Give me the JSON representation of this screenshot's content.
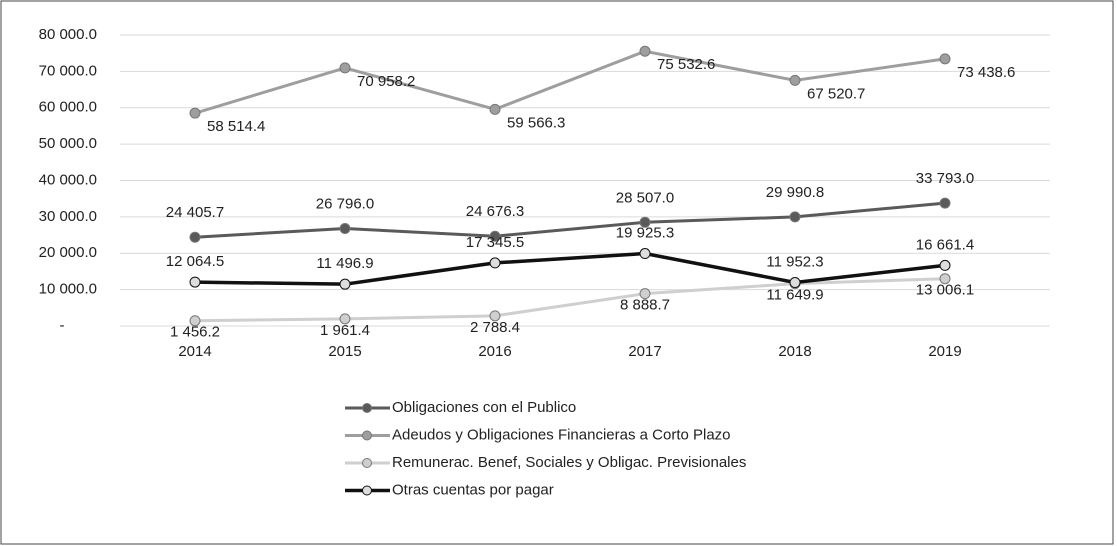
{
  "chart_data": {
    "type": "line",
    "categories": [
      "2014",
      "2015",
      "2016",
      "2017",
      "2018",
      "2019"
    ],
    "ylim": [
      0,
      80000
    ],
    "yticks": [
      {
        "value": 0,
        "label": "-"
      },
      {
        "value": 10000,
        "label": "10 000.0"
      },
      {
        "value": 20000,
        "label": "20 000.0"
      },
      {
        "value": 30000,
        "label": "30 000.0"
      },
      {
        "value": 40000,
        "label": "40 000.0"
      },
      {
        "value": 50000,
        "label": "50 000.0"
      },
      {
        "value": 60000,
        "label": "60 000.0"
      },
      {
        "value": 70000,
        "label": "70 000.0"
      },
      {
        "value": 80000,
        "label": "80 000.0"
      }
    ],
    "grid": true,
    "legend": "bottom",
    "series": [
      {
        "name": "Obligaciones con el Publico",
        "color": "#5a5a5a",
        "values": [
          24405.7,
          26796.0,
          24676.3,
          28507.0,
          29990.8,
          33793.0
        ],
        "value_labels": [
          "24 405.7",
          "26 796.0",
          "24 676.3",
          "28 507.0",
          "29 990.8",
          "33 793.0"
        ]
      },
      {
        "name": "Adeudos y Obligaciones Financieras a Corto Plazo",
        "color": "#9e9e9e",
        "values": [
          58514.4,
          70958.2,
          59566.3,
          75532.6,
          67520.7,
          73438.6
        ],
        "value_labels": [
          "58 514.4",
          "70 958.2",
          "59 566.3",
          "75 532.6",
          "67 520.7",
          "73 438.6"
        ]
      },
      {
        "name": "Remunerac. Benef, Sociales y Obligac. Previsionales",
        "color": "#cfcfcf",
        "values": [
          1456.2,
          1961.4,
          2788.4,
          8888.7,
          11649.9,
          13006.1
        ],
        "value_labels": [
          "1 456.2",
          "1 961.4",
          "2 788.4",
          "8 888.7",
          "11 649.9",
          "13 006.1"
        ]
      },
      {
        "name": "Otras cuentas por pagar",
        "color": "#111111",
        "values": [
          12064.5,
          11496.9,
          17345.5,
          19925.3,
          11952.3,
          16661.4
        ],
        "value_labels": [
          "12 064.5",
          "11 496.9",
          "17 345.5",
          "19 925.3",
          "11 952.3",
          "16 661.4"
        ]
      }
    ]
  }
}
